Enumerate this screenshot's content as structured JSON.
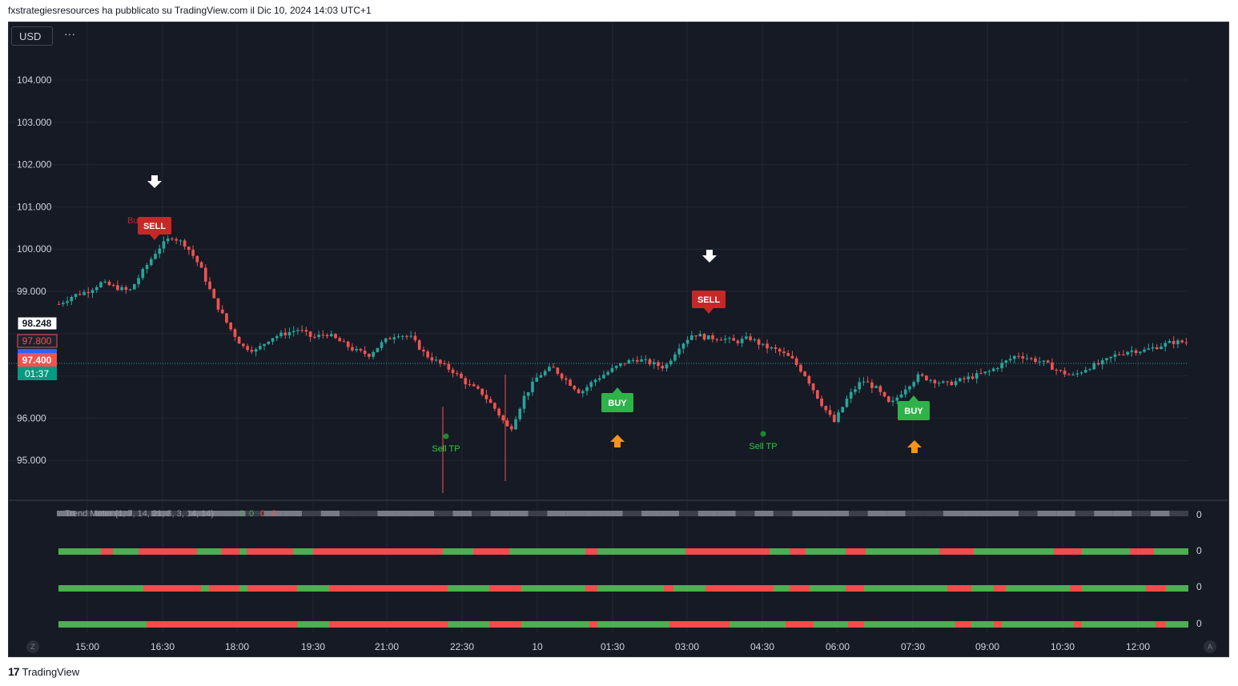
{
  "header": {
    "publisher_line": "fxstrategiesresources ha pubblicato su TradingView.com il Dic 10, 2024 14:03 UTC+1"
  },
  "toolbar": {
    "currency": "USD",
    "more": "···"
  },
  "price_axis": {
    "labels": [
      "104.000",
      "103.000",
      "102.000",
      "101.000",
      "100.000",
      "99.000",
      "96.000",
      "95.000"
    ]
  },
  "price_badges": {
    "last": "98.248",
    "b1": "97.800",
    "b2": "97.400",
    "countdown": "01:37"
  },
  "time_axis": {
    "labels": [
      "15:00",
      "16:30",
      "18:00",
      "19:30",
      "21:00",
      "22:30",
      "10",
      "01:30",
      "03:00",
      "04:30",
      "06:00",
      "07:30",
      "09:00",
      "10:30",
      "12:00"
    ]
  },
  "signals": {
    "sell": "SELL",
    "buy": "BUY",
    "sell_tp": "Sell TP",
    "bu": "Bu"
  },
  "indicator": {
    "title": "Trend Meter (1, 7, 14, 21, 3, 3, 14, 14)",
    "values": [
      "0",
      "0",
      "0",
      "0"
    ],
    "row_values": [
      "0",
      "0",
      "0",
      "0"
    ]
  },
  "footer": {
    "brand": "TradingView",
    "logo": "17"
  },
  "corner": {
    "left": "Z",
    "right": "A"
  },
  "colors": {
    "bg": "#161a25",
    "up": "#26a69a",
    "down": "#ef5350",
    "sell": "#c62828",
    "buy": "#2eb34a",
    "meter_green": "#4caf50",
    "meter_red": "#f44c4c"
  },
  "chart_data": {
    "type": "candlestick",
    "ylim": [
      94.2,
      105.0
    ],
    "close_path": [
      98.7,
      98.9,
      99.0,
      99.2,
      99.1,
      99.0,
      99.5,
      100.0,
      100.3,
      100.1,
      99.6,
      98.8,
      98.2,
      97.7,
      97.6,
      97.9,
      98.0,
      98.1,
      97.9,
      98.0,
      97.8,
      97.6,
      97.5,
      97.8,
      98.0,
      97.9,
      97.5,
      97.3,
      97.1,
      96.8,
      96.6,
      96.2,
      95.7,
      96.5,
      97.0,
      97.2,
      96.9,
      96.6,
      96.9,
      97.1,
      97.3,
      97.4,
      97.3,
      97.2,
      97.7,
      98.0,
      97.9,
      97.9,
      97.8,
      97.9,
      97.7,
      97.6,
      97.4,
      97.0,
      96.4,
      95.9,
      96.5,
      96.9,
      96.7,
      96.3,
      96.7,
      97.0,
      96.9,
      96.8,
      96.9,
      97.0,
      97.1,
      97.3,
      97.5,
      97.4,
      97.3,
      97.1,
      97.0,
      97.2,
      97.3,
      97.5,
      97.6,
      97.6,
      97.7,
      97.8,
      97.8
    ]
  }
}
